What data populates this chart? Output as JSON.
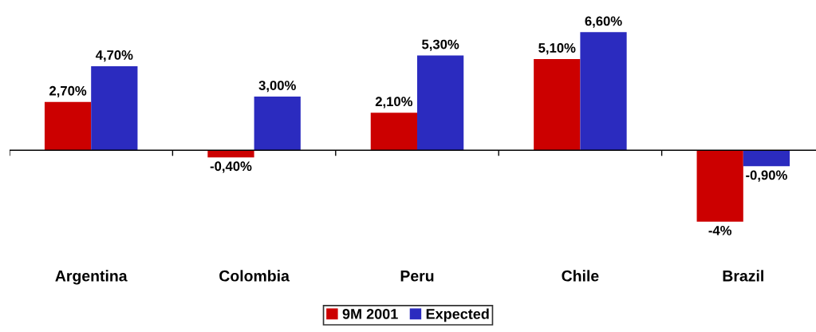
{
  "chart_data": {
    "type": "bar",
    "categories": [
      "Argentina",
      "Colombia",
      "Peru",
      "Chile",
      "Brazil"
    ],
    "series": [
      {
        "name": "9M 2001",
        "color": "#cc0000",
        "values": [
          2.7,
          -0.4,
          2.1,
          5.1,
          -4
        ],
        "value_labels": [
          "2,70%",
          "-0,40%",
          "2,10%",
          "5,10%",
          "-4%"
        ]
      },
      {
        "name": "Expected",
        "color": "#2b2bbf",
        "values": [
          4.7,
          3.0,
          5.3,
          6.6,
          -0.9
        ],
        "value_labels": [
          "4,70%",
          "3,00%",
          "5,30%",
          "6,60%",
          "-0,90%"
        ]
      }
    ],
    "grid": false,
    "legend": "bottom"
  }
}
